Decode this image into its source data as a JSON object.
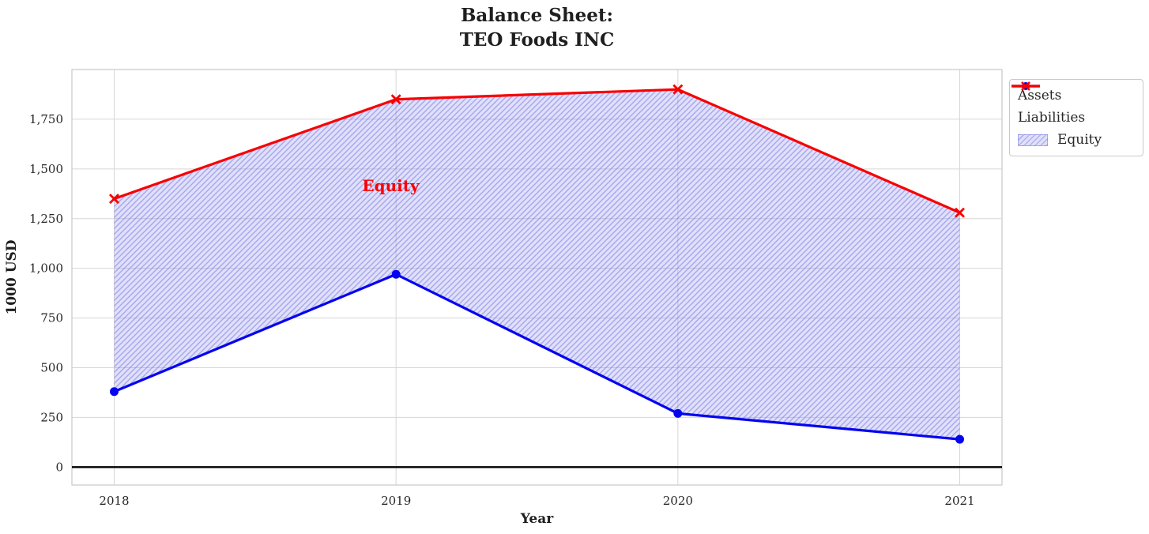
{
  "chart_data": {
    "type": "line",
    "title_lines": [
      "Balance Sheet:",
      "TEO Foods INC"
    ],
    "xlabel": "Year",
    "ylabel": "1000 USD",
    "x": [
      2018,
      2019,
      2020,
      2021
    ],
    "x_tick_labels": [
      "2018",
      "2019",
      "2020",
      "2021"
    ],
    "y_ticks": [
      0,
      250,
      500,
      750,
      1000,
      1250,
      1500,
      1750
    ],
    "y_tick_labels": [
      "0",
      "250",
      "500",
      "750",
      "1,000",
      "1,250",
      "1,500",
      "1,750"
    ],
    "xlim": [
      2017.85,
      2021.15
    ],
    "ylim": [
      -90,
      2000
    ],
    "grid": true,
    "zero_line": true,
    "series": [
      {
        "name": "Assets",
        "color": "#0404f0",
        "marker": "circle",
        "values": [
          380,
          970,
          270,
          140
        ]
      },
      {
        "name": "Liabilities",
        "color": "#f80000",
        "marker": "x",
        "values": [
          1350,
          1850,
          1900,
          1280
        ]
      }
    ],
    "fill_between": {
      "name": "Equity",
      "upper": "Liabilities",
      "lower": "Assets"
    },
    "annotation": {
      "text": "Equity",
      "x": 2018.88,
      "y": 1410,
      "color": "#fb0000"
    },
    "legend": {
      "position": "outside-top-right",
      "entries": [
        "Assets",
        "Liabilities",
        "Equity"
      ]
    },
    "colors": {
      "grid": "#d6d6d6",
      "spine": "#c9c9c9",
      "tick_text": "#262626",
      "title_text": "#1f1f1f",
      "zero_line": "#000000",
      "fill_base": "rgba(130,130,235,0.25)",
      "fill_hatch": "rgba(100,100,225,0.45)"
    }
  }
}
